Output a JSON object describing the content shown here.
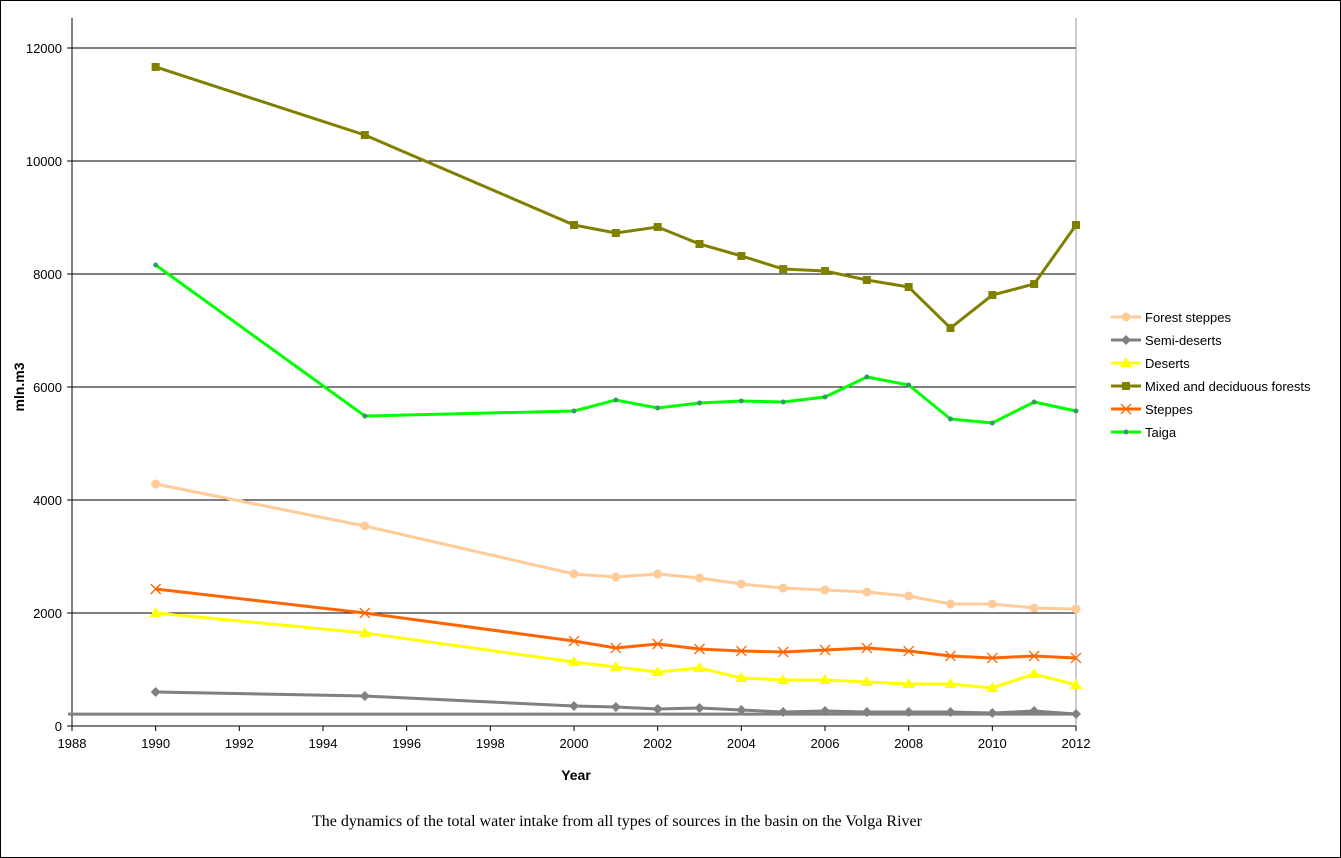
{
  "chart_data": {
    "type": "line",
    "title": "The dynamics of the total water intake from all types of sources in the basin on the Volga River",
    "xlabel": "Year",
    "ylabel": "mln.m3",
    "xlim": [
      1988,
      2012
    ],
    "ylim": [
      0,
      12000
    ],
    "x_ticks": [
      "1988",
      "1990",
      "1992",
      "1994",
      "1996",
      "1998",
      "2000",
      "2002",
      "2004",
      "2006",
      "2008",
      "2010",
      "2012"
    ],
    "y_ticks": [
      "0",
      "2000",
      "4000",
      "6000",
      "8000",
      "10000",
      "12000"
    ],
    "grid": "horizontal",
    "legend_position": "right",
    "x": [
      1990,
      1995,
      2000,
      2001,
      2002,
      2003,
      2004,
      2005,
      2006,
      2007,
      2008,
      2009,
      2010,
      2011,
      2012
    ],
    "reference_line": 210,
    "series": [
      {
        "name": "Forest steppes",
        "color": "#FFCC99",
        "marker": "circle",
        "values": [
          4283,
          3540,
          2690,
          2637,
          2690,
          2620,
          2513,
          2442,
          2407,
          2372,
          2301,
          2159,
          2159,
          2088,
          2071
        ]
      },
      {
        "name": "Semi-deserts",
        "color": "#808080",
        "marker": "diamond",
        "values": [
          602,
          531,
          354,
          336,
          301,
          319,
          283,
          248,
          265,
          248,
          248,
          248,
          230,
          265,
          212
        ]
      },
      {
        "name": "Deserts",
        "color": "#FFFF00",
        "marker": "triangle",
        "values": [
          2000,
          1646,
          1133,
          1044,
          956,
          1027,
          850,
          814,
          814,
          779,
          743,
          743,
          673,
          920,
          726
        ]
      },
      {
        "name": "Mixed and deciduous forests",
        "color": "#808000",
        "marker": "square",
        "values": [
          11664,
          10460,
          8867,
          8726,
          8832,
          8531,
          8319,
          8088,
          8053,
          7894,
          7770,
          7044,
          7628,
          7823,
          8867
        ]
      },
      {
        "name": "Steppes",
        "color": "#FF6600",
        "marker": "x",
        "values": [
          2425,
          2000,
          1504,
          1381,
          1451,
          1363,
          1327,
          1310,
          1345,
          1381,
          1327,
          1239,
          1204,
          1239,
          1204
        ]
      },
      {
        "name": "Taiga",
        "color": "#00FF00",
        "marker": "dot",
        "markerColor": "#339966",
        "values": [
          8159,
          5487,
          5575,
          5770,
          5628,
          5717,
          5752,
          5735,
          5823,
          6177,
          6035,
          5434,
          5363,
          5735,
          5575
        ]
      }
    ]
  }
}
